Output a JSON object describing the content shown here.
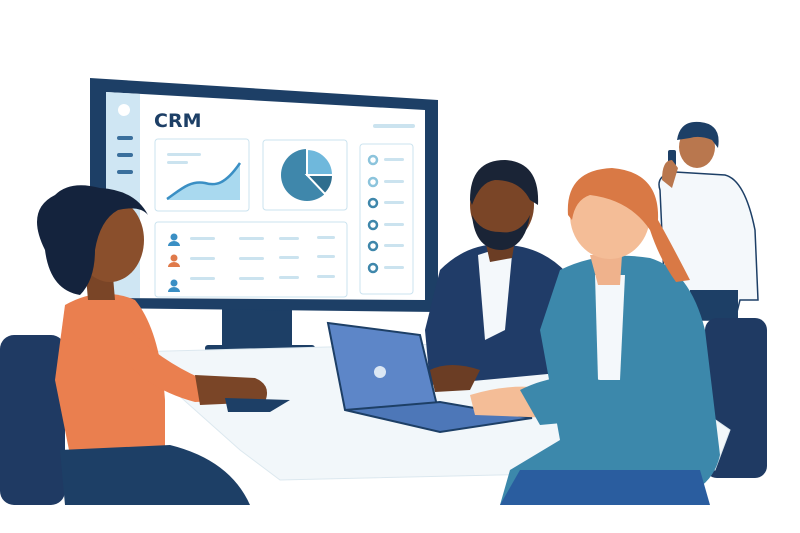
{
  "screen": {
    "title": "CRM",
    "table_row_avatar_colors": [
      "#3a8fc4",
      "#e07a4a",
      "#3a8fc4"
    ],
    "pie_slices_percent": [
      62,
      25,
      13
    ]
  },
  "colors": {
    "monitor_frame": "#1d3f66",
    "screen_bg": "#ffffff",
    "sidebar": "#cfe6f3",
    "card_border": "#cbe3ef",
    "accent_light": "#a9d9ef",
    "accent": "#3a8fc4",
    "orange_shirt": "#ea7f4f",
    "navy_suit": "#203c68",
    "teal_jacket": "#3c88ab",
    "desk": "#f2f7fa"
  }
}
